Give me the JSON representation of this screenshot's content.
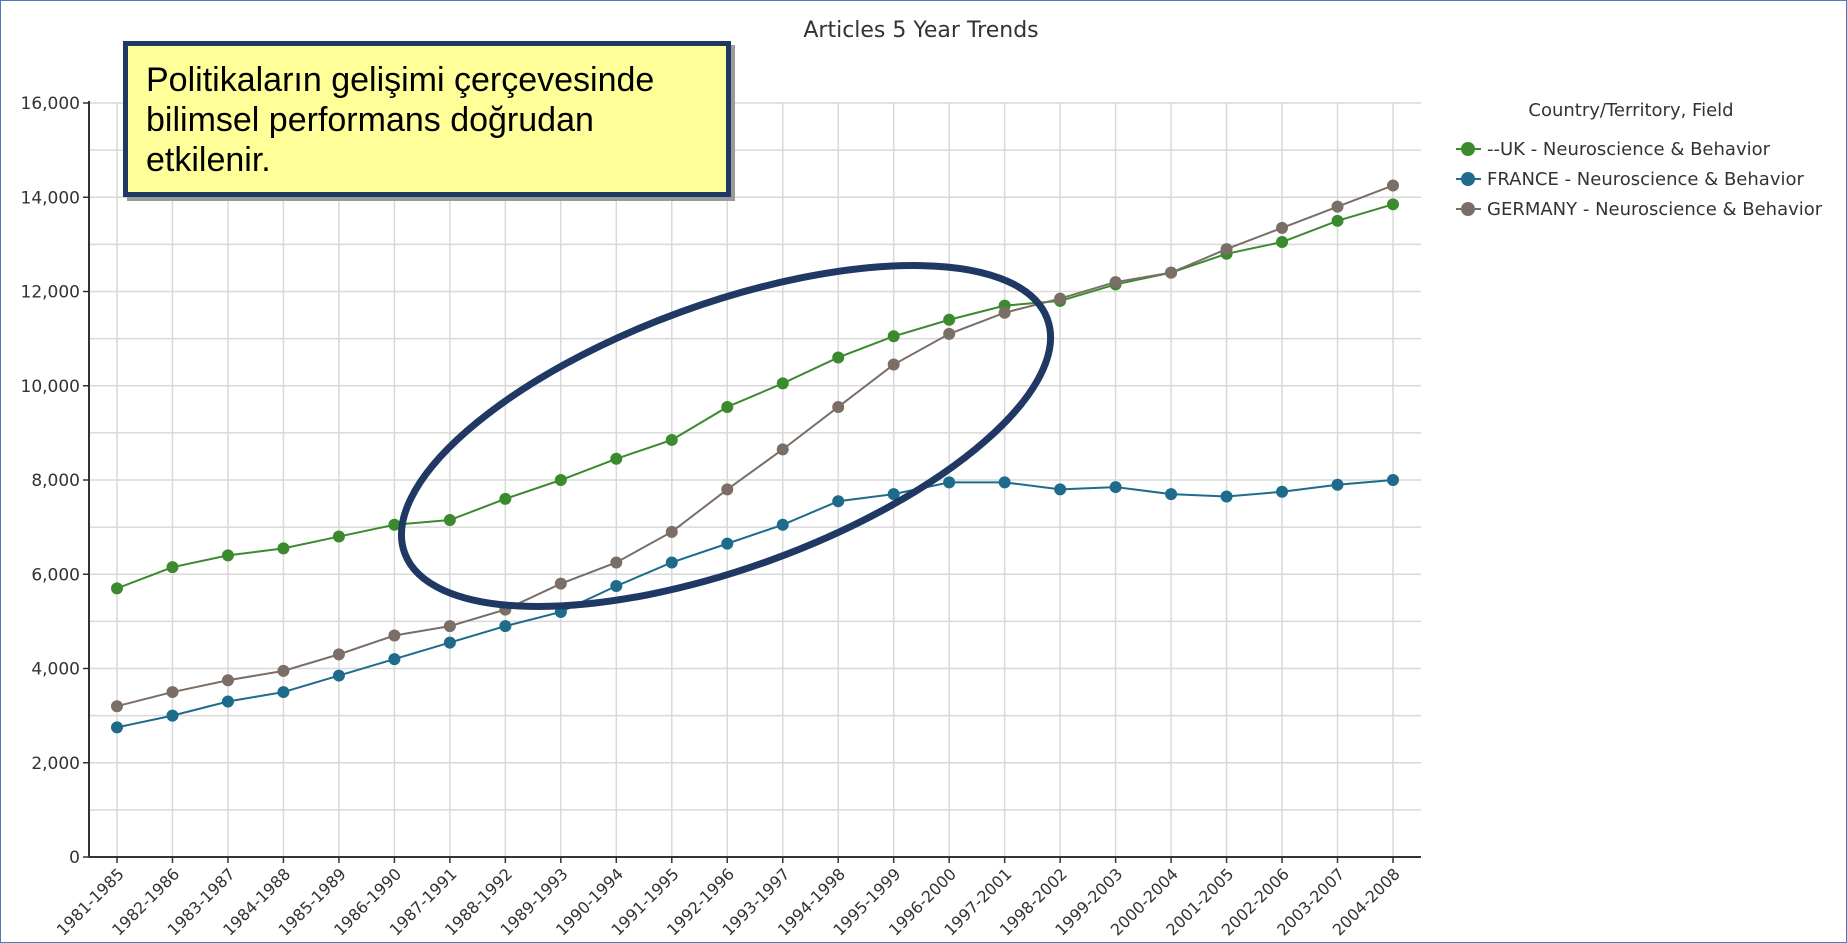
{
  "chart_data": {
    "type": "line",
    "title": "Articles 5 Year Trends",
    "categories": [
      "1981-1985",
      "1982-1986",
      "1983-1987",
      "1984-1988",
      "1985-1989",
      "1986-1990",
      "1987-1991",
      "1988-1992",
      "1989-1993",
      "1990-1994",
      "1991-1995",
      "1992-1996",
      "1993-1997",
      "1994-1998",
      "1995-1999",
      "1996-2000",
      "1997-2001",
      "1998-2002",
      "1999-2003",
      "2000-2004",
      "2001-2005",
      "2002-2006",
      "2003-2007",
      "2004-2008"
    ],
    "y_ticks": [
      "0",
      "2,000",
      "4,000",
      "6,000",
      "8,000",
      "10,000",
      "12,000",
      "14,000",
      "16,000"
    ],
    "ylim": [
      0,
      16000
    ],
    "grid": true,
    "legend": {
      "title": "Country/Territory, Field",
      "position": "right"
    },
    "series": [
      {
        "name": "--UK - Neuroscience & Behavior",
        "color": "#3b8a2e",
        "values": [
          5700,
          6150,
          6400,
          6550,
          6800,
          7050,
          7150,
          7600,
          8000,
          8450,
          8850,
          9550,
          10050,
          10600,
          11050,
          11400,
          11700,
          11800,
          12150,
          12400,
          12800,
          13050,
          13500,
          13850
        ]
      },
      {
        "name": "FRANCE - Neuroscience & Behavior",
        "color": "#1e6b8c",
        "values": [
          2750,
          3000,
          3300,
          3500,
          3850,
          4200,
          4550,
          4900,
          5200,
          5750,
          6250,
          6650,
          7050,
          7550,
          7700,
          7950,
          7950,
          7800,
          7850,
          7700,
          7650,
          7750,
          7900,
          8000
        ]
      },
      {
        "name": "GERMANY - Neuroscience & Behavior",
        "color": "#7a6e66",
        "values": [
          3200,
          3500,
          3750,
          3950,
          4300,
          4700,
          4900,
          5250,
          5800,
          6250,
          6900,
          7800,
          8650,
          9550,
          10450,
          11100,
          11550,
          11850,
          12200,
          12400,
          12900,
          13350,
          13800,
          14250
        ]
      }
    ]
  },
  "annotation": {
    "text_lines": [
      "Politikaların gelişimi çerçevesinde",
      "bilimsel performans doğrudan",
      "etkilenir."
    ],
    "border_color": "#1f3864",
    "fill_color": "#ffff99",
    "highlight_color": "#1f3864"
  }
}
